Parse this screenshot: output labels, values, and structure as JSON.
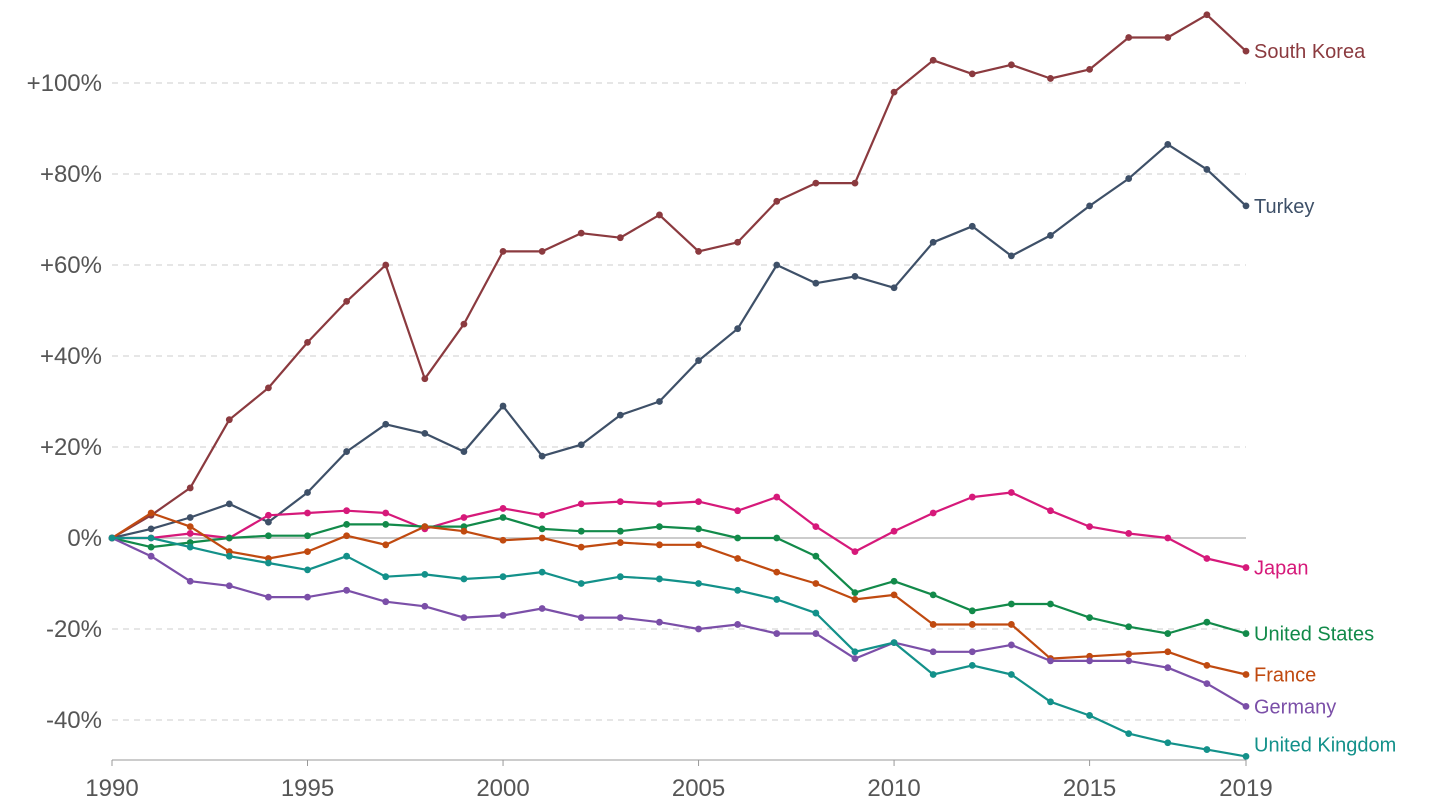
{
  "chart_data": {
    "type": "line",
    "title": "",
    "xlabel": "",
    "ylabel": "",
    "x": [
      1990,
      1991,
      1992,
      1993,
      1994,
      1995,
      1996,
      1997,
      1998,
      1999,
      2000,
      2001,
      2002,
      2003,
      2004,
      2005,
      2006,
      2007,
      2008,
      2009,
      2010,
      2011,
      2012,
      2013,
      2014,
      2015,
      2016,
      2017,
      2018,
      2019
    ],
    "xlim": [
      1990,
      2019
    ],
    "ylim": [
      -48,
      115
    ],
    "y_unit": "percent",
    "log_scale": false,
    "grid": true,
    "legend": "inline labels at line ends",
    "x_ticks": [
      {
        "value": 1990,
        "label": "1990"
      },
      {
        "value": 1995,
        "label": "1995"
      },
      {
        "value": 2000,
        "label": "2000"
      },
      {
        "value": 2005,
        "label": "2005"
      },
      {
        "value": 2010,
        "label": "2010"
      },
      {
        "value": 2015,
        "label": "2015"
      },
      {
        "value": 2019,
        "label": "2019"
      }
    ],
    "y_ticks": [
      {
        "value": 100,
        "label": "+100%"
      },
      {
        "value": 80,
        "label": "+80%"
      },
      {
        "value": 60,
        "label": "+60%"
      },
      {
        "value": 40,
        "label": "+40%"
      },
      {
        "value": 20,
        "label": "+20%"
      },
      {
        "value": 0,
        "label": "0%"
      },
      {
        "value": -20,
        "label": "-20%"
      },
      {
        "value": -40,
        "label": "-40%"
      }
    ],
    "series": [
      {
        "name": "South Korea",
        "color": "#8b3a3f",
        "values": [
          0,
          5,
          11,
          26,
          33,
          43,
          52,
          60,
          35,
          47,
          63,
          63,
          67,
          66,
          71,
          63,
          65,
          74,
          78,
          78,
          98,
          105,
          102,
          104,
          101,
          103,
          110,
          110,
          115,
          107
        ]
      },
      {
        "name": "Turkey",
        "color": "#3e5068",
        "values": [
          0,
          2,
          4.5,
          7.5,
          3.5,
          10,
          19,
          25,
          23,
          19,
          29,
          18,
          20.5,
          27,
          30,
          39,
          46,
          60,
          56,
          57.5,
          55,
          65,
          68.5,
          62,
          66.5,
          73,
          79,
          86.5,
          81,
          73
        ]
      },
      {
        "name": "Japan",
        "color": "#d6197a",
        "values": [
          0,
          0,
          1,
          0,
          5,
          5.5,
          6,
          5.5,
          2,
          4.5,
          6.5,
          5,
          7.5,
          8,
          7.5,
          8,
          6,
          9,
          2.5,
          -3,
          1.5,
          5.5,
          9,
          10,
          6,
          2.5,
          1,
          0,
          -4.5,
          -6.5
        ]
      },
      {
        "name": "United States",
        "color": "#128a4a",
        "values": [
          0,
          -2,
          -1,
          0,
          0.5,
          0.5,
          3,
          3,
          2.5,
          2.5,
          4.5,
          2,
          1.5,
          1.5,
          2.5,
          2,
          0,
          0,
          -4,
          -12,
          -9.5,
          -12.5,
          -16,
          -14.5,
          -14.5,
          -17.5,
          -19.5,
          -21,
          -18.5,
          -21
        ]
      },
      {
        "name": "France",
        "color": "#c04a10",
        "values": [
          0,
          5.5,
          2.5,
          -3,
          -4.5,
          -3,
          0.5,
          -1.5,
          2.5,
          1.5,
          -0.5,
          0,
          -2,
          -1,
          -1.5,
          -1.5,
          -4.5,
          -7.5,
          -10,
          -13.5,
          -12.5,
          -19,
          -19,
          -19,
          -26.5,
          -26,
          -25.5,
          -25,
          -28,
          -30
        ]
      },
      {
        "name": "Germany",
        "color": "#7b4fa8",
        "values": [
          0,
          -4,
          -9.5,
          -10.5,
          -13,
          -13,
          -11.5,
          -14,
          -15,
          -17.5,
          -17,
          -15.5,
          -17.5,
          -17.5,
          -18.5,
          -20,
          -19,
          -21,
          -21,
          -26.5,
          -23,
          -25,
          -25,
          -23.5,
          -27,
          -27,
          -27,
          -28.5,
          -32,
          -37
        ]
      },
      {
        "name": "United Kingdom",
        "color": "#13918a",
        "values": [
          0,
          0,
          -2,
          -4,
          -5.5,
          -7,
          -4,
          -8.5,
          -8,
          -9,
          -8.5,
          -7.5,
          -10,
          -8.5,
          -9,
          -10,
          -11.5,
          -13.5,
          -16.5,
          -25,
          -23,
          -30,
          -28,
          -30,
          -36,
          -39,
          -43,
          -45,
          -46.5,
          -48
        ]
      }
    ]
  }
}
